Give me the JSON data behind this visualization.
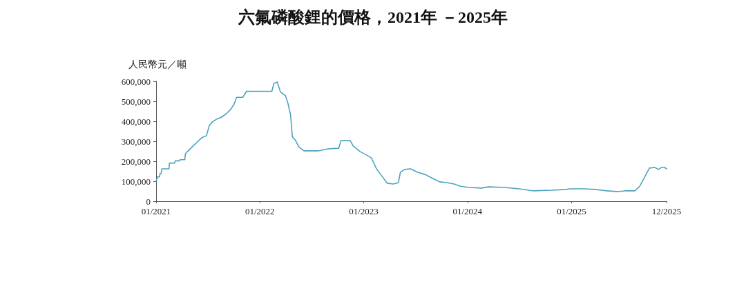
{
  "chart_data": {
    "type": "line",
    "title": "六氟磷酸鋰的價格，2021年 －2025年",
    "ylabel": "人民幣元／噸",
    "color": "#4aa3bd",
    "grid": false,
    "marker": "none",
    "line_style": "solid",
    "x": [
      "2021-01-01",
      "2021-01-06",
      "2021-01-13",
      "2021-01-15",
      "2021-01-19",
      "2021-01-21",
      "2021-02-15",
      "2021-02-17",
      "2021-03-07",
      "2021-03-09",
      "2021-03-24",
      "2021-03-26",
      "2021-04-12",
      "2021-04-14",
      "2021-04-21",
      "2021-05-07",
      "2021-05-24",
      "2021-06-10",
      "2021-06-27",
      "2021-07-07",
      "2021-07-18",
      "2021-08-01",
      "2021-08-17",
      "2021-09-04",
      "2021-09-20",
      "2021-10-03",
      "2021-10-11",
      "2021-11-02",
      "2021-11-15",
      "2022-02-12",
      "2022-02-19",
      "2022-03-03",
      "2022-03-14",
      "2022-04-01",
      "2022-04-10",
      "2022-04-19",
      "2022-04-25",
      "2022-05-05",
      "2022-05-18",
      "2022-06-05",
      "2022-07-25",
      "2022-08-28",
      "2022-10-05",
      "2022-10-13",
      "2022-11-15",
      "2022-11-25",
      "2022-12-20",
      "2023-01-15",
      "2023-01-28",
      "2023-02-15",
      "2023-03-05",
      "2023-03-25",
      "2023-04-15",
      "2023-05-03",
      "2023-05-10",
      "2023-05-25",
      "2023-06-15",
      "2023-07-10",
      "2023-08-05",
      "2023-09-01",
      "2023-09-25",
      "2023-10-20",
      "2023-11-15",
      "2023-12-05",
      "2024-01-05",
      "2024-02-20",
      "2024-03-15",
      "2024-05-10",
      "2024-07-01",
      "2024-08-20",
      "2024-10-23",
      "2024-12-13",
      "2024-12-25",
      "2025-02-15",
      "2025-03-26",
      "2025-05-06",
      "2025-06-13",
      "2025-07-08",
      "2025-08-12",
      "2025-08-29",
      "2025-09-15",
      "2025-10-02",
      "2025-10-20",
      "2025-11-04",
      "2025-11-12",
      "2025-11-24",
      "2025-12-01"
    ],
    "values": [
      100000,
      122000,
      122000,
      139000,
      139000,
      162000,
      162000,
      191000,
      191000,
      202000,
      202000,
      208000,
      208000,
      237000,
      248000,
      271000,
      294000,
      317000,
      328000,
      379000,
      397000,
      410000,
      419000,
      437000,
      459000,
      488000,
      520000,
      520000,
      550000,
      550000,
      589000,
      597000,
      547000,
      528000,
      488000,
      431000,
      322000,
      307000,
      272000,
      252000,
      252000,
      262000,
      265000,
      303000,
      303000,
      276000,
      248000,
      228000,
      217000,
      162000,
      128000,
      90000,
      86000,
      93000,
      145000,
      159000,
      162000,
      145000,
      134000,
      114000,
      97000,
      93000,
      86000,
      76000,
      69000,
      66000,
      72000,
      69000,
      62000,
      52000,
      55000,
      59000,
      62000,
      62000,
      59000,
      52000,
      48000,
      52000,
      52000,
      76000,
      121000,
      166000,
      169000,
      159000,
      169000,
      169000,
      162000
    ],
    "xlim": [
      "2021-01-01",
      "2025-12-01"
    ],
    "xticks": [
      {
        "value": "2021-01-01",
        "label": "01/2021"
      },
      {
        "value": "2022-01-01",
        "label": "01/2022"
      },
      {
        "value": "2023-01-01",
        "label": "01/2023"
      },
      {
        "value": "2024-01-01",
        "label": "01/2024"
      },
      {
        "value": "2025-01-01",
        "label": "01/2025"
      },
      {
        "value": "2025-12-01",
        "label": "12/2025"
      }
    ],
    "ylim": [
      0,
      600000
    ],
    "yticks": [
      0,
      {
        "value": 100000,
        "label": "100,000"
      },
      {
        "value": 200000,
        "label": "200,000"
      },
      {
        "value": 300000,
        "label": "300,000"
      },
      {
        "value": 400000,
        "label": "400,000"
      },
      {
        "value": 500000,
        "label": "500,000"
      },
      {
        "value": 600000,
        "label": "600,000"
      }
    ]
  }
}
